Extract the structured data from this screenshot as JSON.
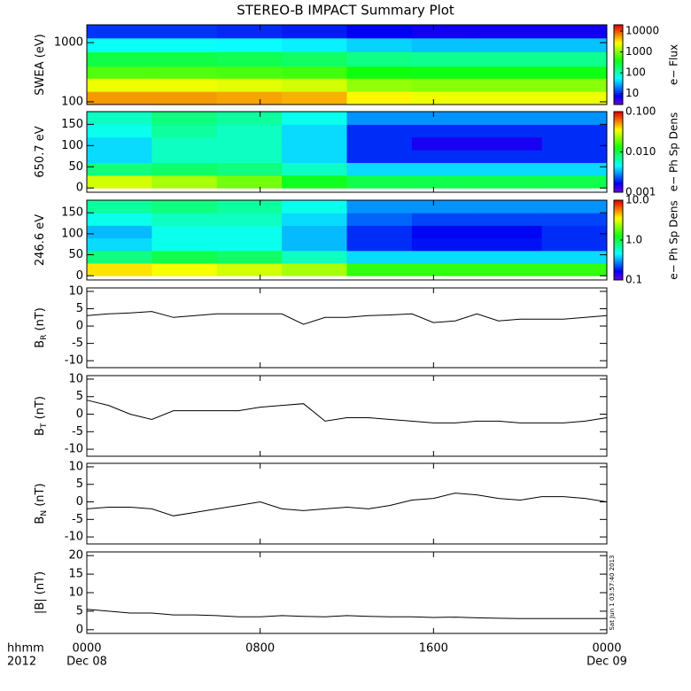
{
  "chart_data": [
    {
      "type": "heatmap",
      "title": "STEREO-B IMPACT Summary Plot",
      "y_label": "SWEA (eV)",
      "ylog": true,
      "ylim": [
        90,
        2000
      ],
      "yticks": [
        100,
        1000
      ],
      "x_edges": [
        0,
        3,
        6,
        9,
        12,
        15,
        18,
        21,
        24
      ],
      "y_edges": [
        90,
        150,
        250,
        400,
        700,
        1200,
        2000
      ],
      "values": [
        [
          6000,
          6000,
          5500,
          5000,
          3000,
          2500,
          2500,
          2500
        ],
        [
          2500,
          2500,
          2300,
          2000,
          1200,
          1100,
          1100,
          1100
        ],
        [
          700,
          700,
          650,
          600,
          400,
          380,
          380,
          380
        ],
        [
          250,
          250,
          230,
          200,
          150,
          140,
          140,
          140
        ],
        [
          60,
          60,
          55,
          50,
          40,
          35,
          35,
          35
        ],
        [
          12,
          12,
          11,
          10,
          8,
          7,
          7,
          7
        ]
      ],
      "colorbar": {
        "label": "e− Flux",
        "log": true,
        "lim": [
          3,
          20000
        ],
        "ticks": [
          10,
          100,
          1000,
          10000
        ]
      }
    },
    {
      "type": "heatmap",
      "y_label": "650.7 eV",
      "ylog": false,
      "ylim": [
        -10,
        180
      ],
      "yticks": [
        0,
        50,
        100,
        150
      ],
      "x_edges": [
        0,
        3,
        6,
        9,
        12,
        15,
        18,
        21,
        24
      ],
      "y_edges": [
        0,
        30,
        60,
        90,
        120,
        150,
        180
      ],
      "values": [
        [
          0.03,
          0.025,
          0.02,
          0.012,
          0.01,
          0.01,
          0.01,
          0.01
        ],
        [
          0.008,
          0.009,
          0.008,
          0.006,
          0.004,
          0.004,
          0.004,
          0.004
        ],
        [
          0.004,
          0.006,
          0.006,
          0.004,
          0.002,
          0.002,
          0.002,
          0.002
        ],
        [
          0.004,
          0.006,
          0.006,
          0.004,
          0.002,
          0.0015,
          0.0015,
          0.002
        ],
        [
          0.005,
          0.007,
          0.006,
          0.004,
          0.002,
          0.002,
          0.002,
          0.002
        ],
        [
          0.006,
          0.008,
          0.007,
          0.005,
          0.003,
          0.003,
          0.003,
          0.003
        ]
      ],
      "colorbar": {
        "label": "e− Ph Sp Dens",
        "log": true,
        "lim": [
          0.001,
          0.1
        ],
        "ticks": [
          {
            "value": 0.001,
            "label": "0.001"
          },
          {
            "value": 0.01,
            "label": "0.010"
          },
          {
            "value": 0.1,
            "label": "0.100"
          }
        ]
      }
    },
    {
      "type": "heatmap",
      "y_label": "246.6 eV",
      "ylog": false,
      "ylim": [
        -10,
        180
      ],
      "yticks": [
        0,
        50,
        100,
        150
      ],
      "x_edges": [
        0,
        3,
        6,
        9,
        12,
        15,
        18,
        21,
        24
      ],
      "y_edges": [
        0,
        30,
        60,
        90,
        120,
        150,
        180
      ],
      "values": [
        [
          4,
          3.5,
          3,
          2.5,
          1.5,
          1.5,
          1.5,
          1.5
        ],
        [
          0.8,
          1,
          0.9,
          0.6,
          0.4,
          0.4,
          0.4,
          0.4
        ],
        [
          0.4,
          0.5,
          0.5,
          0.35,
          0.2,
          0.18,
          0.18,
          0.2
        ],
        [
          0.35,
          0.5,
          0.5,
          0.35,
          0.2,
          0.17,
          0.17,
          0.2
        ],
        [
          0.5,
          0.6,
          0.6,
          0.4,
          0.25,
          0.22,
          0.22,
          0.22
        ],
        [
          0.7,
          0.8,
          0.7,
          0.5,
          0.3,
          0.3,
          0.3,
          0.3
        ]
      ],
      "colorbar": {
        "label": "e− Ph Sp Dens",
        "log": true,
        "lim": [
          0.1,
          10
        ],
        "ticks": [
          {
            "value": 0.1,
            "label": "0.1"
          },
          {
            "value": 1,
            "label": "1.0"
          },
          {
            "value": 10,
            "label": "10.0"
          }
        ]
      }
    },
    {
      "type": "line",
      "y_label": "B",
      "y_label_sub": "R",
      "y_label_unit": " (nT)",
      "ylim": [
        -12,
        11
      ],
      "yticks": [
        -10,
        -5,
        0,
        5,
        10
      ],
      "x": [
        0,
        1,
        2,
        3,
        4,
        5,
        6,
        7,
        8,
        9,
        10,
        11,
        12,
        13,
        14,
        15,
        16,
        17,
        18,
        19,
        20,
        21,
        22,
        23,
        24
      ],
      "values": [
        3,
        3.5,
        3.8,
        4.2,
        2.5,
        3,
        3.5,
        3.5,
        3.5,
        3.5,
        0.5,
        2.5,
        2.5,
        3,
        3.2,
        3.5,
        1,
        1.5,
        3.5,
        1.5,
        2,
        2,
        2,
        2.5,
        3
      ]
    },
    {
      "type": "line",
      "y_label": "B",
      "y_label_sub": "T",
      "y_label_unit": " (nT)",
      "ylim": [
        -12,
        11
      ],
      "yticks": [
        -10,
        -5,
        0,
        5,
        10
      ],
      "x": [
        0,
        1,
        2,
        3,
        4,
        5,
        6,
        7,
        8,
        9,
        10,
        11,
        12,
        13,
        14,
        15,
        16,
        17,
        18,
        19,
        20,
        21,
        22,
        23,
        24
      ],
      "values": [
        4,
        2.5,
        0,
        -1.5,
        1,
        1,
        1,
        1,
        2,
        2.5,
        3,
        -2,
        -1,
        -1,
        -1.5,
        -2,
        -2.5,
        -2.5,
        -2,
        -2,
        -2.5,
        -2.5,
        -2.5,
        -2,
        -1
      ]
    },
    {
      "type": "line",
      "y_label": "B",
      "y_label_sub": "N",
      "y_label_unit": " (nT)",
      "ylim": [
        -12,
        11
      ],
      "yticks": [
        -10,
        -5,
        0,
        5,
        10
      ],
      "x": [
        0,
        1,
        2,
        3,
        4,
        5,
        6,
        7,
        8,
        9,
        10,
        11,
        12,
        13,
        14,
        15,
        16,
        17,
        18,
        19,
        20,
        21,
        22,
        23,
        24
      ],
      "values": [
        -2,
        -1.5,
        -1.5,
        -2,
        -4,
        -3,
        -2,
        -1,
        0,
        -2,
        -2.5,
        -2,
        -1.5,
        -2,
        -1,
        0.5,
        1,
        2.5,
        2,
        1,
        0.5,
        1.5,
        1.5,
        1,
        0
      ]
    },
    {
      "type": "line",
      "y_label": "|B| (nT)",
      "ylim": [
        -1,
        21
      ],
      "yticks": [
        0,
        5,
        10,
        15,
        20
      ],
      "x": [
        0,
        1,
        2,
        3,
        4,
        5,
        6,
        7,
        8,
        9,
        10,
        11,
        12,
        13,
        14,
        15,
        16,
        17,
        18,
        19,
        20,
        21,
        22,
        23,
        24
      ],
      "values": [
        5.5,
        5,
        4.5,
        4.5,
        4,
        4,
        3.8,
        3.5,
        3.5,
        3.8,
        3.6,
        3.5,
        3.8,
        3.6,
        3.5,
        3.5,
        3.3,
        3.4,
        3.2,
        3.1,
        3,
        3,
        3,
        3,
        3
      ],
      "xlim": [
        0,
        24
      ],
      "xticks": [
        {
          "value": 0,
          "label": "0000"
        },
        {
          "value": 8,
          "label": "0800"
        },
        {
          "value": 16,
          "label": "1600"
        },
        {
          "value": 24,
          "label": "0000"
        }
      ],
      "x_dates": [
        {
          "value": 0,
          "label": "Dec 08"
        },
        {
          "value": 24,
          "label": "Dec 09"
        }
      ],
      "x_title": "hhmm",
      "x_year": "2012",
      "timestamp": "Sat Jun 1 03:57:40 2013"
    }
  ]
}
